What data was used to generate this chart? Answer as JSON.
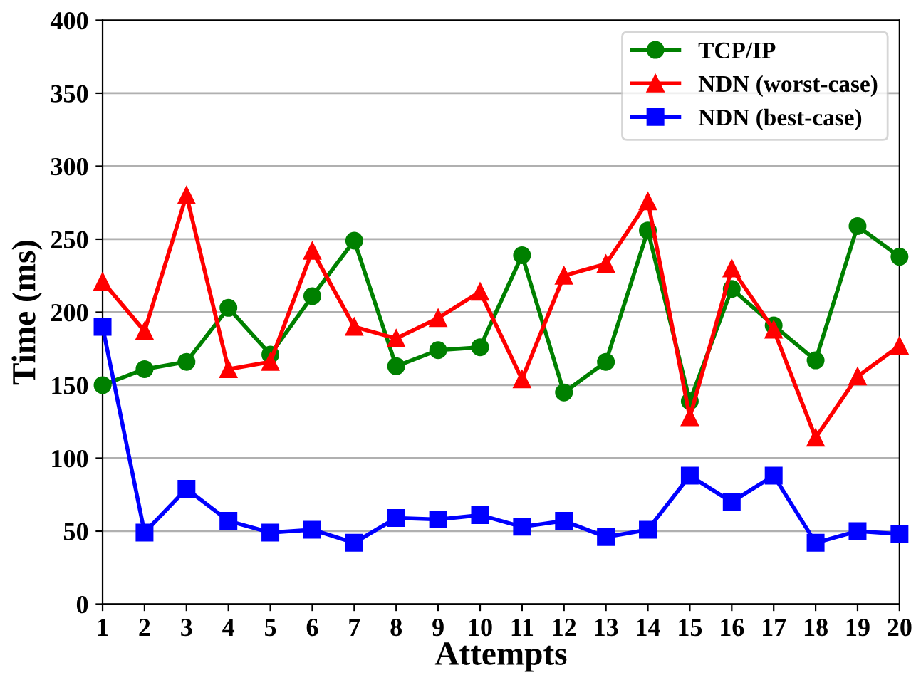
{
  "chart_data": {
    "type": "line",
    "xlabel": "Attempts",
    "ylabel": "Time (ms)",
    "x": [
      1,
      2,
      3,
      4,
      5,
      6,
      7,
      8,
      9,
      10,
      11,
      12,
      13,
      14,
      15,
      16,
      17,
      18,
      19,
      20
    ],
    "xlim": [
      1,
      20
    ],
    "xticks": [
      1,
      2,
      3,
      4,
      5,
      6,
      7,
      8,
      9,
      10,
      11,
      12,
      13,
      14,
      15,
      16,
      17,
      18,
      19,
      20
    ],
    "ylim": [
      0,
      400
    ],
    "yticks": [
      0,
      50,
      100,
      150,
      200,
      250,
      300,
      350,
      400
    ],
    "grid": "y",
    "legend": "top right",
    "line_style": "solid",
    "series": [
      {
        "name": "TCP/IP",
        "color": "#008000",
        "marker": "circle",
        "values": [
          150,
          161,
          166,
          203,
          171,
          211,
          249,
          163,
          174,
          176,
          239,
          145,
          166,
          256,
          139,
          216,
          191,
          167,
          259,
          238
        ]
      },
      {
        "name": "NDN (worst-case)",
        "color": "#ff0000",
        "marker": "triangle",
        "values": [
          221,
          187,
          280,
          161,
          166,
          242,
          190,
          182,
          196,
          214,
          154,
          225,
          233,
          276,
          128,
          230,
          188,
          114,
          156,
          177
        ]
      },
      {
        "name": "NDN (best-case)",
        "color": "#0000ff",
        "marker": "square",
        "values": [
          190,
          49,
          79,
          57,
          49,
          51,
          42,
          59,
          58,
          61,
          53,
          57,
          46,
          51,
          88,
          70,
          88,
          42,
          50,
          48
        ]
      }
    ]
  }
}
